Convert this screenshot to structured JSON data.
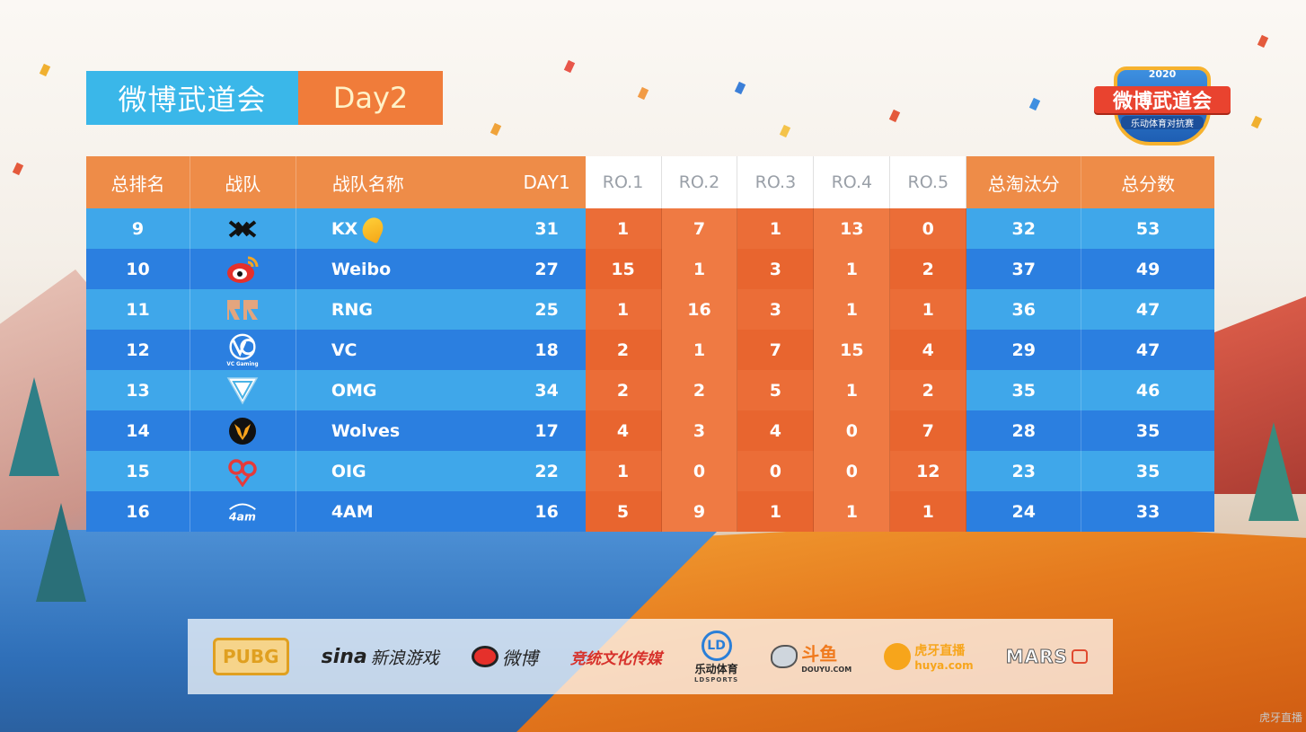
{
  "title": {
    "event": "微博武道会",
    "day": "Day2"
  },
  "emblem": {
    "year": "2020",
    "name": "微博武道会",
    "subtitle": "乐动体育对抗赛"
  },
  "table": {
    "headers": {
      "rank": "总排名",
      "team": "战队",
      "team_name": "战队名称",
      "day1": "DAY1",
      "ro1": "RO.1",
      "ro2": "RO.2",
      "ro3": "RO.3",
      "ro4": "RO.4",
      "ro5": "RO.5",
      "kills": "总淘汰分",
      "total": "总分数"
    },
    "rows": [
      {
        "rank": "9",
        "logo": "kx-logo-icon",
        "name": "KX",
        "day1": "31",
        "ro": [
          "1",
          "7",
          "1",
          "13",
          "0"
        ],
        "kills": "32",
        "total": "53"
      },
      {
        "rank": "10",
        "logo": "weibo-logo-icon",
        "name": "Weibo",
        "day1": "27",
        "ro": [
          "15",
          "1",
          "3",
          "1",
          "2"
        ],
        "kills": "37",
        "total": "49"
      },
      {
        "rank": "11",
        "logo": "rng-logo-icon",
        "name": "RNG",
        "day1": "25",
        "ro": [
          "1",
          "16",
          "3",
          "1",
          "1"
        ],
        "kills": "36",
        "total": "47"
      },
      {
        "rank": "12",
        "logo": "vc-logo-icon",
        "name": "VC",
        "day1": "18",
        "ro": [
          "2",
          "1",
          "7",
          "15",
          "4"
        ],
        "kills": "29",
        "total": "47"
      },
      {
        "rank": "13",
        "logo": "omg-logo-icon",
        "name": "OMG",
        "day1": "34",
        "ro": [
          "2",
          "2",
          "5",
          "1",
          "2"
        ],
        "kills": "35",
        "total": "46"
      },
      {
        "rank": "14",
        "logo": "wolves-logo-icon",
        "name": "Wolves",
        "day1": "17",
        "ro": [
          "4",
          "3",
          "4",
          "0",
          "7"
        ],
        "kills": "28",
        "total": "35"
      },
      {
        "rank": "15",
        "logo": "oig-logo-icon",
        "name": "OIG",
        "day1": "22",
        "ro": [
          "1",
          "0",
          "0",
          "0",
          "12"
        ],
        "kills": "23",
        "total": "35"
      },
      {
        "rank": "16",
        "logo": "4am-logo-icon",
        "name": "4AM",
        "day1": "16",
        "ro": [
          "5",
          "9",
          "1",
          "1",
          "1"
        ],
        "kills": "24",
        "total": "33"
      }
    ]
  },
  "sponsors": {
    "pubg": "PUBG",
    "sina": "sina",
    "sina_games": "新浪游戏",
    "weibo": "微博",
    "jingtong": "竞统文化传媒",
    "ld": "LD",
    "ldsports": "乐动体育",
    "ldsports_en": "LDSPORTS",
    "douyu": "斗鱼",
    "douyu_en": "DOUYU.COM",
    "huya": "虎牙直播",
    "huya_en": "huya.com",
    "mars": "MARS"
  },
  "watermark": "虎牙直播",
  "colors": {
    "blue_light": "#3fa7ea",
    "blue_dark": "#2b7fe0",
    "orange": "#ee8c48",
    "orange_cell": "#eb6d37"
  }
}
